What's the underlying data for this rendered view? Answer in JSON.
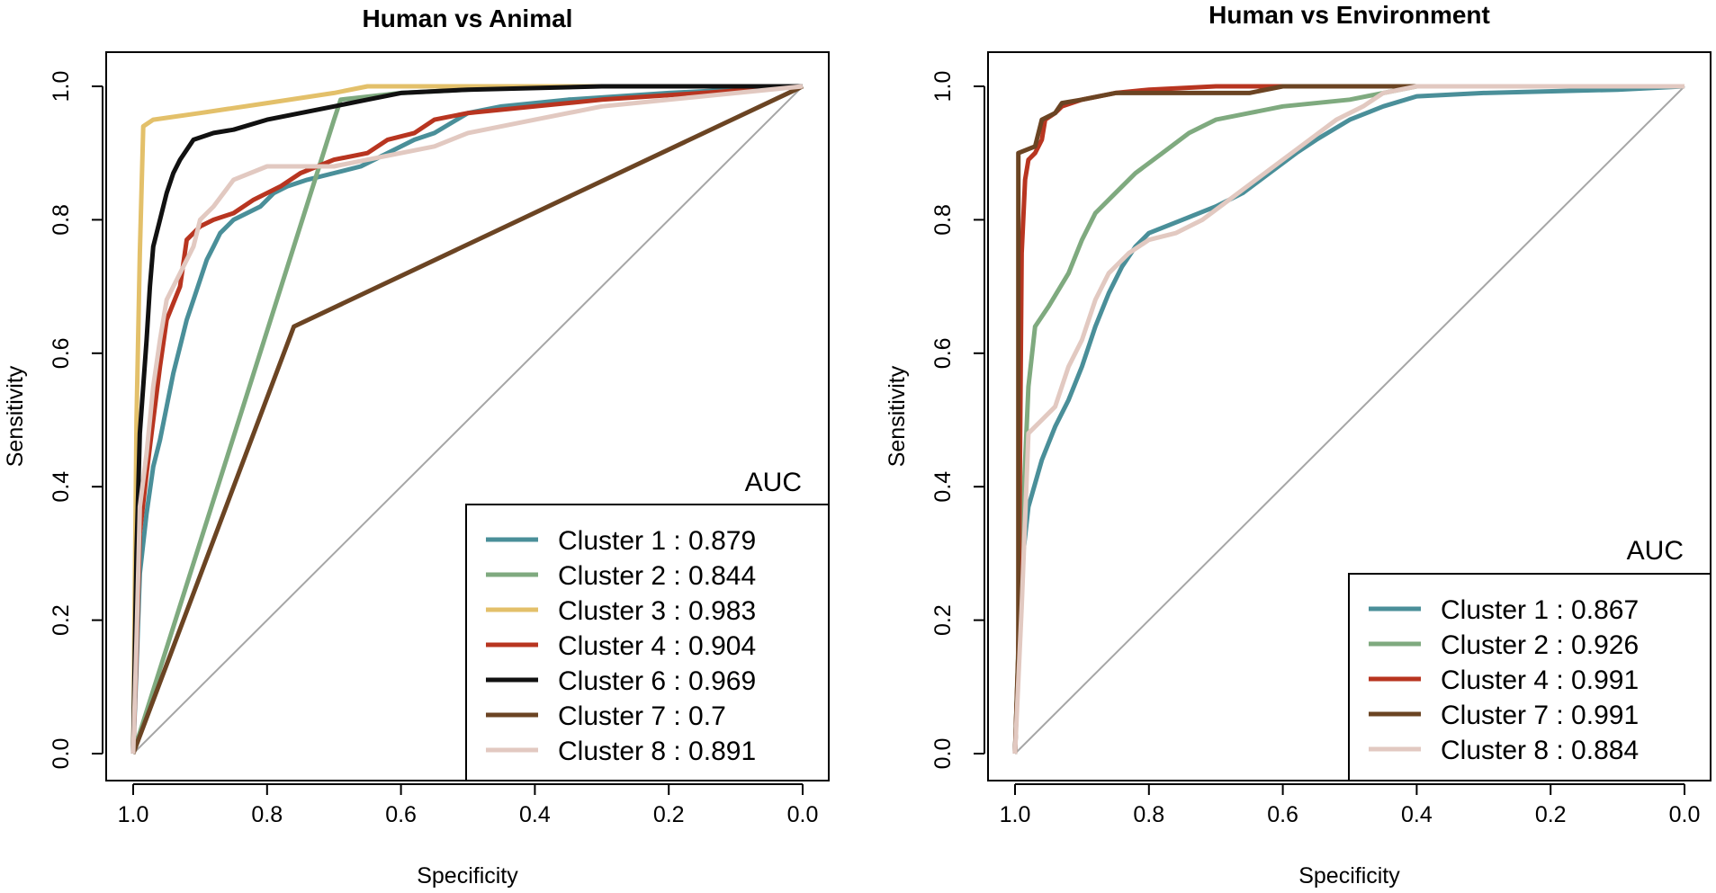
{
  "chart_data": [
    {
      "type": "line",
      "title": "Human vs Animal",
      "xlabel": "Specificity",
      "ylabel": "Sensitivity",
      "xlim": [
        1.0,
        0.0
      ],
      "ylim": [
        0.0,
        1.0
      ],
      "x_ticks": [
        "1.0",
        "0.8",
        "0.6",
        "0.4",
        "0.2",
        "0.0"
      ],
      "y_ticks": [
        "0.0",
        "0.2",
        "0.4",
        "0.6",
        "0.8",
        "1.0"
      ],
      "legend_title": "AUC",
      "legend_position": "bottom-right",
      "series": [
        {
          "name": "Cluster 1",
          "auc": "0.879",
          "label": "Cluster 1 : 0.879",
          "color": "#4a8f99",
          "points": [
            [
              1.0,
              0.0
            ],
            [
              0.995,
              0.13
            ],
            [
              0.99,
              0.27
            ],
            [
              0.98,
              0.36
            ],
            [
              0.97,
              0.43
            ],
            [
              0.96,
              0.47
            ],
            [
              0.95,
              0.52
            ],
            [
              0.94,
              0.57
            ],
            [
              0.93,
              0.61
            ],
            [
              0.92,
              0.65
            ],
            [
              0.91,
              0.68
            ],
            [
              0.9,
              0.71
            ],
            [
              0.89,
              0.74
            ],
            [
              0.88,
              0.76
            ],
            [
              0.87,
              0.78
            ],
            [
              0.85,
              0.8
            ],
            [
              0.83,
              0.81
            ],
            [
              0.81,
              0.82
            ],
            [
              0.79,
              0.84
            ],
            [
              0.77,
              0.85
            ],
            [
              0.74,
              0.86
            ],
            [
              0.7,
              0.87
            ],
            [
              0.66,
              0.88
            ],
            [
              0.62,
              0.9
            ],
            [
              0.58,
              0.92
            ],
            [
              0.55,
              0.93
            ],
            [
              0.5,
              0.96
            ],
            [
              0.45,
              0.97
            ],
            [
              0.35,
              0.98
            ],
            [
              0.2,
              0.99
            ],
            [
              0.0,
              1.0
            ]
          ]
        },
        {
          "name": "Cluster 2",
          "auc": "0.844",
          "label": "Cluster 2 : 0.844",
          "color": "#7faa7f",
          "points": [
            [
              1.0,
              0.0
            ],
            [
              0.7,
              0.95
            ],
            [
              0.69,
              0.98
            ],
            [
              0.6,
              0.99
            ],
            [
              0.4,
              1.0
            ],
            [
              0.0,
              1.0
            ]
          ]
        },
        {
          "name": "Cluster 3",
          "auc": "0.983",
          "label": "Cluster 3 : 0.983",
          "color": "#e3c06a",
          "points": [
            [
              1.0,
              0.0
            ],
            [
              0.995,
              0.5
            ],
            [
              0.99,
              0.75
            ],
            [
              0.985,
              0.94
            ],
            [
              0.97,
              0.95
            ],
            [
              0.9,
              0.96
            ],
            [
              0.8,
              0.975
            ],
            [
              0.7,
              0.99
            ],
            [
              0.65,
              1.0
            ],
            [
              0.0,
              1.0
            ]
          ]
        },
        {
          "name": "Cluster 4",
          "auc": "0.904",
          "label": "Cluster 4 : 0.904",
          "color": "#b83520",
          "points": [
            [
              1.0,
              0.0
            ],
            [
              0.995,
              0.15
            ],
            [
              0.99,
              0.33
            ],
            [
              0.98,
              0.42
            ],
            [
              0.97,
              0.5
            ],
            [
              0.96,
              0.58
            ],
            [
              0.95,
              0.65
            ],
            [
              0.93,
              0.7
            ],
            [
              0.92,
              0.77
            ],
            [
              0.9,
              0.79
            ],
            [
              0.88,
              0.8
            ],
            [
              0.85,
              0.81
            ],
            [
              0.82,
              0.83
            ],
            [
              0.78,
              0.85
            ],
            [
              0.75,
              0.87
            ],
            [
              0.7,
              0.89
            ],
            [
              0.65,
              0.9
            ],
            [
              0.62,
              0.92
            ],
            [
              0.58,
              0.93
            ],
            [
              0.55,
              0.95
            ],
            [
              0.5,
              0.96
            ],
            [
              0.4,
              0.97
            ],
            [
              0.3,
              0.98
            ],
            [
              0.15,
              0.99
            ],
            [
              0.0,
              1.0
            ]
          ]
        },
        {
          "name": "Cluster 6",
          "auc": "0.969",
          "label": "Cluster 6 : 0.969",
          "color": "#111111",
          "points": [
            [
              1.0,
              0.0
            ],
            [
              0.995,
              0.3
            ],
            [
              0.99,
              0.48
            ],
            [
              0.98,
              0.62
            ],
            [
              0.975,
              0.7
            ],
            [
              0.97,
              0.76
            ],
            [
              0.96,
              0.8
            ],
            [
              0.95,
              0.84
            ],
            [
              0.94,
              0.87
            ],
            [
              0.93,
              0.89
            ],
            [
              0.91,
              0.92
            ],
            [
              0.88,
              0.93
            ],
            [
              0.85,
              0.935
            ],
            [
              0.8,
              0.95
            ],
            [
              0.75,
              0.96
            ],
            [
              0.7,
              0.97
            ],
            [
              0.65,
              0.98
            ],
            [
              0.6,
              0.99
            ],
            [
              0.5,
              0.995
            ],
            [
              0.3,
              1.0
            ],
            [
              0.0,
              1.0
            ]
          ]
        },
        {
          "name": "Cluster 7",
          "auc": "0.7",
          "label": "Cluster 7 : 0.7",
          "color": "#6b4423",
          "points": [
            [
              1.0,
              0.0
            ],
            [
              0.76,
              0.64
            ],
            [
              0.0,
              1.0
            ]
          ]
        },
        {
          "name": "Cluster 8",
          "auc": "0.891",
          "label": "Cluster 8 : 0.891",
          "color": "#e2c9c1",
          "points": [
            [
              1.0,
              0.0
            ],
            [
              0.995,
              0.17
            ],
            [
              0.99,
              0.37
            ],
            [
              0.98,
              0.45
            ],
            [
              0.97,
              0.55
            ],
            [
              0.96,
              0.62
            ],
            [
              0.95,
              0.68
            ],
            [
              0.93,
              0.72
            ],
            [
              0.91,
              0.76
            ],
            [
              0.9,
              0.8
            ],
            [
              0.88,
              0.82
            ],
            [
              0.85,
              0.86
            ],
            [
              0.8,
              0.88
            ],
            [
              0.75,
              0.88
            ],
            [
              0.7,
              0.88
            ],
            [
              0.65,
              0.89
            ],
            [
              0.6,
              0.9
            ],
            [
              0.55,
              0.91
            ],
            [
              0.5,
              0.93
            ],
            [
              0.4,
              0.95
            ],
            [
              0.3,
              0.97
            ],
            [
              0.15,
              0.985
            ],
            [
              0.0,
              1.0
            ]
          ]
        }
      ]
    },
    {
      "type": "line",
      "title": "Human vs Environment",
      "xlabel": "Specificity",
      "ylabel": "Sensitivity",
      "xlim": [
        1.0,
        0.0
      ],
      "ylim": [
        0.0,
        1.0
      ],
      "x_ticks": [
        "1.0",
        "0.8",
        "0.6",
        "0.4",
        "0.2",
        "0.0"
      ],
      "y_ticks": [
        "0.0",
        "0.2",
        "0.4",
        "0.6",
        "0.8",
        "1.0"
      ],
      "legend_title": "AUC",
      "legend_position": "bottom-right",
      "series": [
        {
          "name": "Cluster 1",
          "auc": "0.867",
          "label": "Cluster 1 : 0.867",
          "color": "#4a8f99",
          "points": [
            [
              1.0,
              0.0
            ],
            [
              0.99,
              0.28
            ],
            [
              0.98,
              0.37
            ],
            [
              0.96,
              0.44
            ],
            [
              0.94,
              0.49
            ],
            [
              0.92,
              0.53
            ],
            [
              0.9,
              0.58
            ],
            [
              0.88,
              0.64
            ],
            [
              0.86,
              0.69
            ],
            [
              0.84,
              0.73
            ],
            [
              0.82,
              0.76
            ],
            [
              0.8,
              0.78
            ],
            [
              0.75,
              0.8
            ],
            [
              0.7,
              0.82
            ],
            [
              0.66,
              0.84
            ],
            [
              0.62,
              0.87
            ],
            [
              0.58,
              0.9
            ],
            [
              0.55,
              0.92
            ],
            [
              0.5,
              0.95
            ],
            [
              0.45,
              0.97
            ],
            [
              0.4,
              0.985
            ],
            [
              0.3,
              0.99
            ],
            [
              0.1,
              0.995
            ],
            [
              0.0,
              1.0
            ]
          ]
        },
        {
          "name": "Cluster 2",
          "auc": "0.926",
          "label": "Cluster 2 : 0.926",
          "color": "#7faa7f",
          "points": [
            [
              1.0,
              0.0
            ],
            [
              0.99,
              0.32
            ],
            [
              0.98,
              0.55
            ],
            [
              0.97,
              0.64
            ],
            [
              0.95,
              0.67
            ],
            [
              0.92,
              0.72
            ],
            [
              0.9,
              0.77
            ],
            [
              0.88,
              0.81
            ],
            [
              0.85,
              0.84
            ],
            [
              0.82,
              0.87
            ],
            [
              0.78,
              0.9
            ],
            [
              0.74,
              0.93
            ],
            [
              0.7,
              0.95
            ],
            [
              0.65,
              0.96
            ],
            [
              0.6,
              0.97
            ],
            [
              0.5,
              0.98
            ],
            [
              0.45,
              0.99
            ],
            [
              0.4,
              1.0
            ],
            [
              0.0,
              1.0
            ]
          ]
        },
        {
          "name": "Cluster 4",
          "auc": "0.991",
          "label": "Cluster 4 : 0.991",
          "color": "#b83520",
          "points": [
            [
              1.0,
              0.0
            ],
            [
              0.995,
              0.15
            ],
            [
              0.99,
              0.75
            ],
            [
              0.985,
              0.86
            ],
            [
              0.98,
              0.89
            ],
            [
              0.97,
              0.9
            ],
            [
              0.96,
              0.92
            ],
            [
              0.955,
              0.95
            ],
            [
              0.94,
              0.96
            ],
            [
              0.93,
              0.97
            ],
            [
              0.9,
              0.98
            ],
            [
              0.85,
              0.99
            ],
            [
              0.8,
              0.995
            ],
            [
              0.7,
              1.0
            ],
            [
              0.0,
              1.0
            ]
          ]
        },
        {
          "name": "Cluster 7",
          "auc": "0.991",
          "label": "Cluster 7 : 0.991",
          "color": "#6b4423",
          "points": [
            [
              1.0,
              0.0
            ],
            [
              0.995,
              0.15
            ],
            [
              0.995,
              0.9
            ],
            [
              0.97,
              0.91
            ],
            [
              0.96,
              0.95
            ],
            [
              0.94,
              0.96
            ],
            [
              0.93,
              0.975
            ],
            [
              0.9,
              0.98
            ],
            [
              0.85,
              0.99
            ],
            [
              0.75,
              0.99
            ],
            [
              0.65,
              0.99
            ],
            [
              0.6,
              1.0
            ],
            [
              0.0,
              1.0
            ]
          ]
        },
        {
          "name": "Cluster 8",
          "auc": "0.884",
          "label": "Cluster 8 : 0.884",
          "color": "#e2c9c1",
          "points": [
            [
              1.0,
              0.0
            ],
            [
              0.99,
              0.22
            ],
            [
              0.98,
              0.48
            ],
            [
              0.96,
              0.5
            ],
            [
              0.94,
              0.52
            ],
            [
              0.92,
              0.58
            ],
            [
              0.9,
              0.62
            ],
            [
              0.88,
              0.68
            ],
            [
              0.86,
              0.72
            ],
            [
              0.83,
              0.75
            ],
            [
              0.8,
              0.77
            ],
            [
              0.76,
              0.78
            ],
            [
              0.72,
              0.8
            ],
            [
              0.68,
              0.83
            ],
            [
              0.64,
              0.86
            ],
            [
              0.6,
              0.89
            ],
            [
              0.56,
              0.92
            ],
            [
              0.52,
              0.95
            ],
            [
              0.48,
              0.97
            ],
            [
              0.45,
              0.99
            ],
            [
              0.4,
              1.0
            ],
            [
              0.0,
              1.0
            ]
          ]
        }
      ]
    }
  ]
}
